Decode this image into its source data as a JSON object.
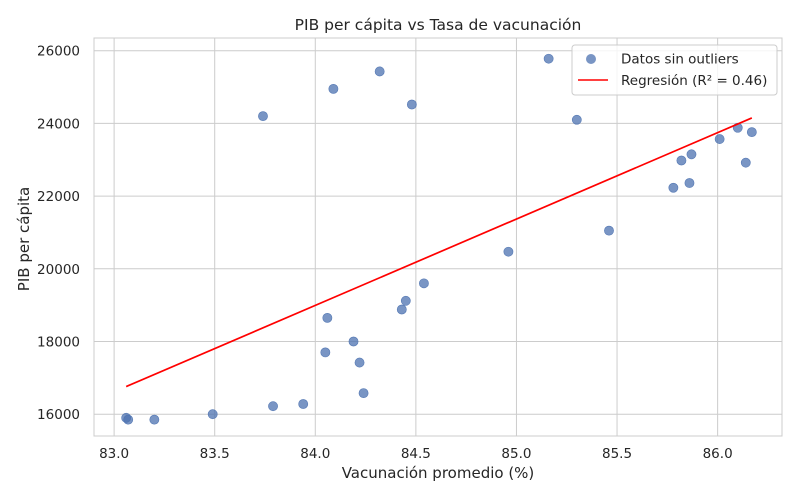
{
  "chart_data": {
    "type": "scatter",
    "title": "PIB per cápita vs Tasa de vacunación",
    "xlabel": "Vacunación promedio (%)",
    "ylabel": "PIB per cápita",
    "xlim": [
      82.9,
      86.32
    ],
    "ylim": [
      15400,
      26350
    ],
    "xticks": [
      83.0,
      83.5,
      84.0,
      84.5,
      85.0,
      85.5,
      86.0
    ],
    "xtick_labels": [
      "83.0",
      "83.5",
      "84.0",
      "84.5",
      "85.0",
      "85.5",
      "86.0"
    ],
    "yticks": [
      16000,
      18000,
      20000,
      22000,
      24000,
      26000
    ],
    "ytick_labels": [
      "16000",
      "18000",
      "20000",
      "22000",
      "24000",
      "26000"
    ],
    "grid": true,
    "legend_position": "top-right",
    "colors": {
      "scatter": "#4c72b0",
      "regression": "#ff0000"
    },
    "series": [
      {
        "name": "Datos sin outliers",
        "kind": "scatter",
        "points": [
          [
            83.06,
            15900
          ],
          [
            83.07,
            15850
          ],
          [
            83.2,
            15850
          ],
          [
            83.49,
            16000
          ],
          [
            83.74,
            24200
          ],
          [
            83.79,
            16220
          ],
          [
            83.94,
            16280
          ],
          [
            84.05,
            17700
          ],
          [
            84.06,
            18650
          ],
          [
            84.09,
            24950
          ],
          [
            84.19,
            18000
          ],
          [
            84.22,
            17420
          ],
          [
            84.24,
            16580
          ],
          [
            84.32,
            25430
          ],
          [
            84.43,
            18880
          ],
          [
            84.45,
            19120
          ],
          [
            84.48,
            24520
          ],
          [
            84.54,
            19600
          ],
          [
            84.96,
            20470
          ],
          [
            85.16,
            25780
          ],
          [
            85.3,
            24100
          ],
          [
            85.46,
            21050
          ],
          [
            85.78,
            22230
          ],
          [
            85.82,
            22980
          ],
          [
            85.86,
            22360
          ],
          [
            85.87,
            23150
          ],
          [
            86.01,
            23570
          ],
          [
            86.1,
            23880
          ],
          [
            86.14,
            22920
          ],
          [
            86.17,
            23760
          ]
        ]
      },
      {
        "name": "Regresión (R² = 0.46)",
        "kind": "line",
        "points": [
          [
            83.06,
            16760
          ],
          [
            86.17,
            24150
          ]
        ]
      }
    ]
  }
}
